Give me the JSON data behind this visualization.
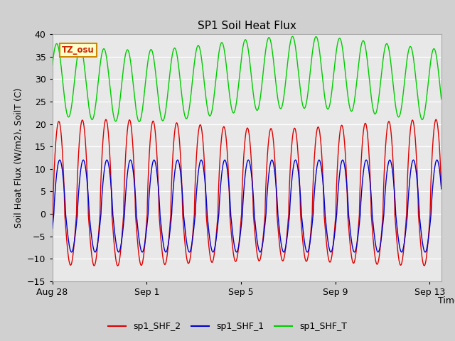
{
  "title": "SP1 Soil Heat Flux",
  "ylabel": "Soil Heat Flux (W/m2), SoilT (C)",
  "xlabel": "Time",
  "ylim": [
    -15,
    40
  ],
  "yticks": [
    -15,
    -10,
    -5,
    0,
    5,
    10,
    15,
    20,
    25,
    30,
    35,
    40
  ],
  "xtick_labels": [
    "Aug 28",
    "Sep 1",
    "Sep 5",
    "Sep 9",
    "Sep 13"
  ],
  "xtick_positions": [
    0,
    4,
    8,
    12,
    16
  ],
  "n_days": 16.5,
  "fig_bg_color": "#d0d0d0",
  "plot_bg_color": "#e8e8e8",
  "line_color_red": "#dd0000",
  "line_color_blue": "#0000cc",
  "line_color_green": "#00cc00",
  "legend_labels": [
    "sp1_SHF_2",
    "sp1_SHF_1",
    "sp1_SHF_T"
  ],
  "tz_label": "TZ_osu",
  "title_fontsize": 11,
  "axis_fontsize": 9,
  "tick_fontsize": 9
}
